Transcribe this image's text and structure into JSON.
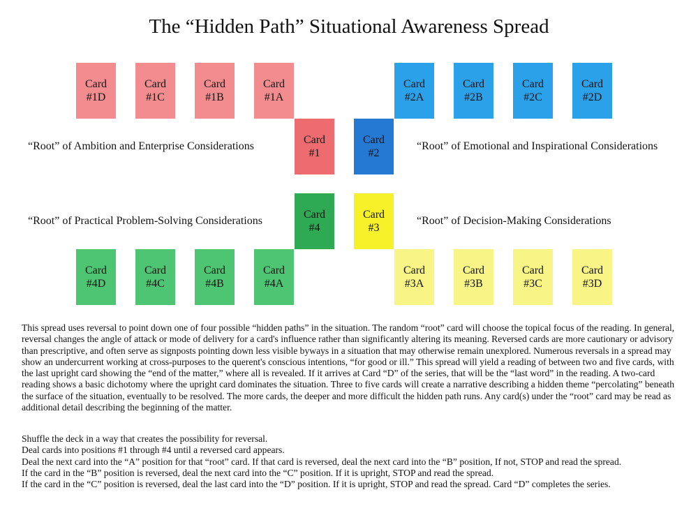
{
  "title": "The “Hidden Path” Situational Awareness Spread",
  "colors": {
    "red_light": "#f28c8e",
    "red_root": "#ee6c6f",
    "blue_light": "#2ba1ea",
    "blue_root": "#2479d2",
    "green_light": "#4dc572",
    "green_root": "#2eaa55",
    "yellow_light": "#f8f486",
    "yellow_root": "#f7f129"
  },
  "card_word": "Card",
  "cards": {
    "c1D": "#1D",
    "c1C": "#1C",
    "c1B": "#1B",
    "c1A": "#1A",
    "c2A": "#2A",
    "c2B": "#2B",
    "c2C": "#2C",
    "c2D": "#2D",
    "c1": "#1",
    "c2": "#2",
    "c4": "#4",
    "c3": "#3",
    "c4D": "#4D",
    "c4C": "#4C",
    "c4B": "#4B",
    "c4A": "#4A",
    "c3A": "#3A",
    "c3B": "#3B",
    "c3C": "#3C",
    "c3D": "#3D"
  },
  "labels": {
    "ambition": "“Root” of Ambition and Enterprise Considerations",
    "emotional": "“Root” of Emotional and Inspirational Considerations",
    "practical": "“Root” of Practical Problem-Solving Considerations",
    "decision": "“Root” of Decision-Making Considerations"
  },
  "description": "This spread uses reversal to point down one of four possible “hidden paths” in the situation. The random “root” card will choose the topical focus of the reading. In general, reversal changes the angle of attack or mode of delivery for a card's influence rather than significantly altering its meaning. Reversed cards are more cautionary or advisory than prescriptive, and often serve as signposts pointing down less visible byways in a situation that may otherwise remain unexplored. Numerous reversals in a spread may show an undercurrent working at cross-purposes to the querent's conscious intentions, “for good or ill.” This spread will yield a reading of between two and five cards, with the last upright card showing the “end of the matter,” where all is revealed. If it arrives at Card “D” of the series, that will be the “last word” in the reading. A two-card reading shows a basic dichotomy where the upright card dominates the situation. Three to five cards will create a narrative describing a hidden theme “percolating” beneath the surface of the situation, eventually to be resolved. The more cards, the deeper and more difficult the hidden path runs. Any card(s) under the “root” card may be read as additional detail describing the beginning of the matter.",
  "steps": [
    "Shuffle the deck in a way that creates the possibility for reversal.",
    "Deal cards into positions #1 through #4 until a reversed card appears.",
    "Deal the next card into the “A” position for that “root” card. If that card is reversed, deal the next card into the “B” position, If not, STOP and read the spread.",
    "If the card in the “B” position is reversed, deal the next card into the “C” position. If it is upright, STOP and read the spread.",
    "If the card in the “C” position is reversed, deal the last card into the “D” position. If it is upright, STOP and read the spread. Card “D” completes the series."
  ]
}
